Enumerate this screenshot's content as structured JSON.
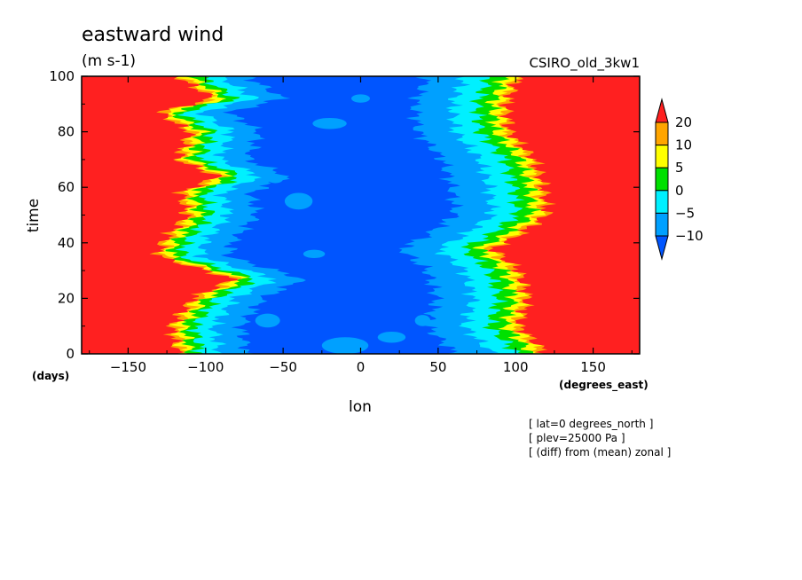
{
  "chart_data": {
    "type": "heatmap",
    "title": "eastward wind",
    "units": "(m s-1)",
    "model": "CSIRO_old_3kw1",
    "xlabel": "lon",
    "ylabel": "time",
    "x_unit": "(degrees_east)",
    "y_unit": "(days)",
    "xlim": [
      -180,
      180
    ],
    "ylim": [
      0,
      100
    ],
    "x_ticks": [
      -150,
      -100,
      -50,
      0,
      50,
      100,
      150
    ],
    "y_ticks": [
      0,
      20,
      40,
      60,
      80,
      100
    ],
    "colorbar": {
      "levels": [
        -10,
        -5,
        0,
        5,
        10,
        20
      ],
      "labels": [
        "20",
        "10",
        "5",
        "0",
        "-5",
        "-10"
      ],
      "colors": [
        "#0055ff",
        "#00a0ff",
        "#00f0ff",
        "#00e000",
        "#ffff00",
        "#ffa500",
        "#ff2020"
      ]
    },
    "annotations": [
      "[ lat=0 degrees_north ]",
      "[ plev=25000 Pa ]",
      "[ (diff) from (mean) zonal ]"
    ],
    "west_boundary_lon": [
      {
        "t": 0,
        "lon": -118
      },
      {
        "t": 10,
        "lon": -122
      },
      {
        "t": 20,
        "lon": -108
      },
      {
        "t": 27,
        "lon": -82
      },
      {
        "t": 35,
        "lon": -130
      },
      {
        "t": 40,
        "lon": -128
      },
      {
        "t": 50,
        "lon": -112
      },
      {
        "t": 58,
        "lon": -116
      },
      {
        "t": 64,
        "lon": -92
      },
      {
        "t": 70,
        "lon": -118
      },
      {
        "t": 80,
        "lon": -110
      },
      {
        "t": 87,
        "lon": -130
      },
      {
        "t": 92,
        "lon": -95
      },
      {
        "t": 100,
        "lon": -118
      }
    ],
    "east_boundary_lon": [
      {
        "t": 0,
        "lon": 120
      },
      {
        "t": 10,
        "lon": 102
      },
      {
        "t": 20,
        "lon": 108
      },
      {
        "t": 30,
        "lon": 102
      },
      {
        "t": 38,
        "lon": 85
      },
      {
        "t": 42,
        "lon": 100
      },
      {
        "t": 50,
        "lon": 120
      },
      {
        "t": 60,
        "lon": 118
      },
      {
        "t": 70,
        "lon": 112
      },
      {
        "t": 80,
        "lon": 96
      },
      {
        "t": 90,
        "lon": 94
      },
      {
        "t": 100,
        "lon": 102
      }
    ],
    "boundary_band_widths_deg": {
      "west": [
        18,
        12,
        7,
        5,
        3
      ],
      "east": [
        24,
        16,
        10,
        6,
        3
      ]
    }
  }
}
